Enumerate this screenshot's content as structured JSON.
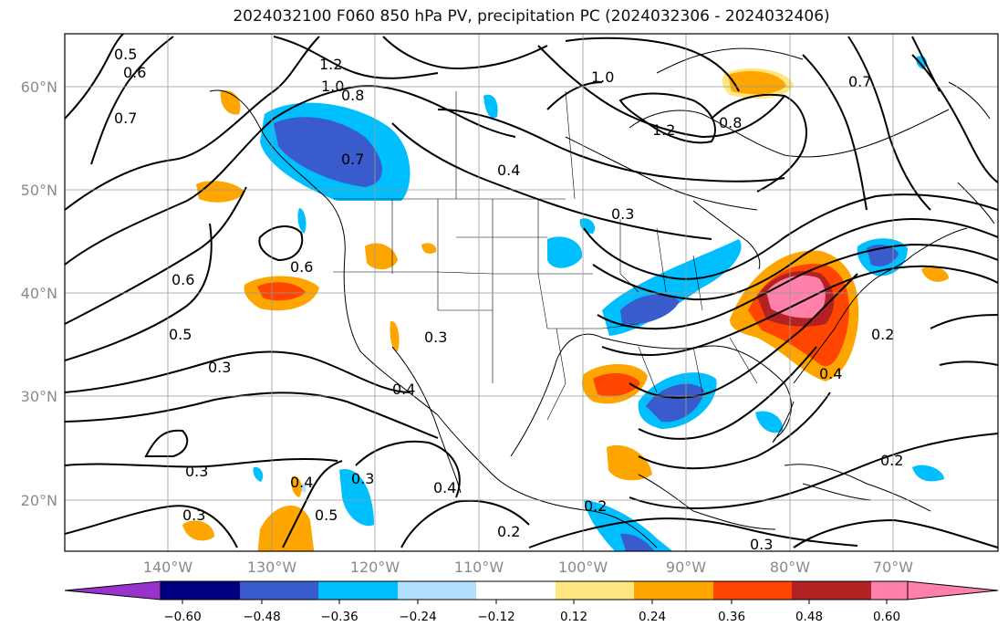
{
  "title": "2024032100 F060 850 hPa PV, precipitation PC (2024032306 - 2024032406)",
  "map": {
    "lat_labels": [
      "60°N",
      "50°N",
      "40°N",
      "30°N",
      "20°N"
    ],
    "lon_labels": [
      "140°W",
      "130°W",
      "120°W",
      "110°W",
      "100°W",
      "90°W",
      "80°W",
      "70°W"
    ],
    "contour_labels": [
      "1.2",
      "1.0",
      "0.8",
      "0.7",
      "0.5",
      "0.6",
      "0.7",
      "0.4",
      "0.3",
      "0.6",
      "0.5",
      "0.6",
      "0.3",
      "0.4",
      "0.3",
      "0.3",
      "0.4",
      "0.5",
      "0.3",
      "0.2",
      "0.4",
      "0.2",
      "0.2",
      "0.3",
      "1.2",
      "0.8",
      "1.0",
      "0.4",
      "0.7",
      "0.2",
      "0.3"
    ]
  },
  "colorbar": {
    "ticks": [
      "−0.60",
      "−0.48",
      "−0.36",
      "−0.24",
      "−0.12",
      "0.12",
      "0.24",
      "0.36",
      "0.48",
      "0.60"
    ],
    "colors": [
      "#9933cc",
      "#000080",
      "#3a5bcc",
      "#00bfff",
      "#b3e0ff",
      "#ffffff",
      "#ffe680",
      "#ffa500",
      "#ff4500",
      "#b22222",
      "#ff80a8"
    ]
  }
}
